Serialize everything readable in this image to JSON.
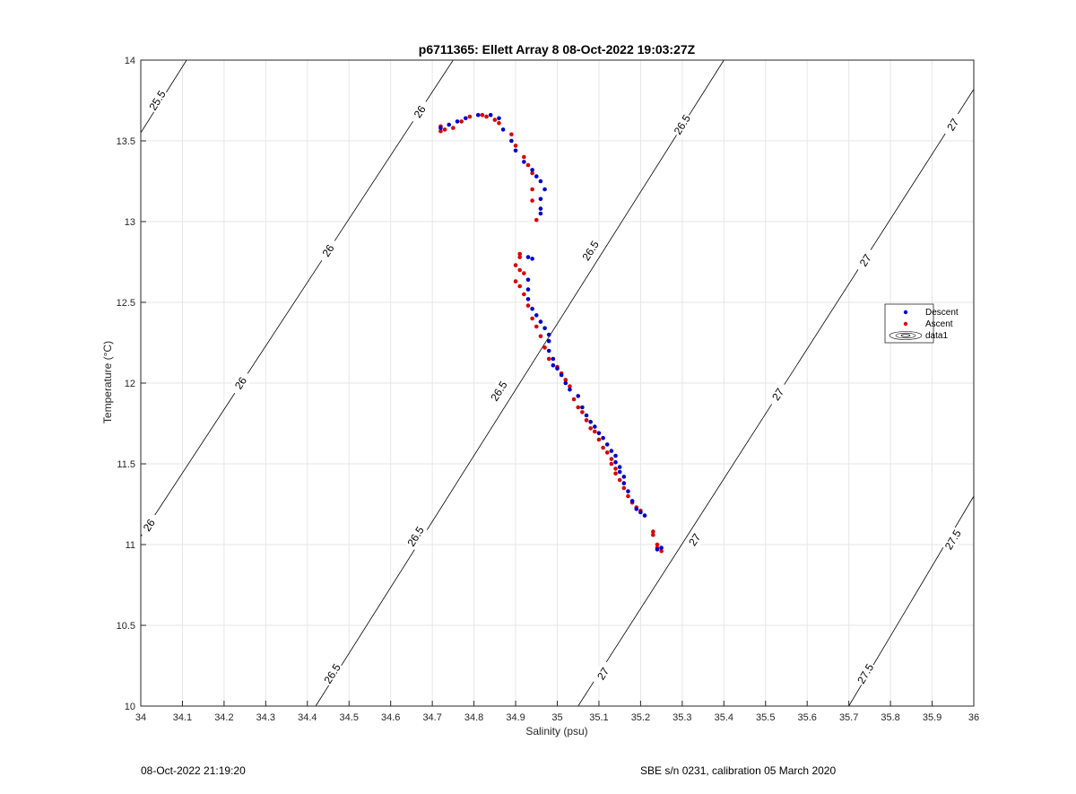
{
  "chart_data": {
    "type": "scatter",
    "title": "p6711365: Ellett Array 8 08-Oct-2022 19:03:27Z",
    "xlabel": "Salinity (psu)",
    "ylabel": "Temperature (°C)",
    "xlim": [
      34,
      36
    ],
    "ylim": [
      10,
      14
    ],
    "x_ticks": [
      "34",
      "34.1",
      "34.2",
      "34.3",
      "34.4",
      "34.5",
      "34.6",
      "34.7",
      "34.8",
      "34.9",
      "35",
      "35.1",
      "35.2",
      "35.3",
      "35.4",
      "35.5",
      "35.6",
      "35.7",
      "35.8",
      "35.9",
      "36"
    ],
    "y_ticks": [
      "10",
      "10.5",
      "11",
      "11.5",
      "12",
      "12.5",
      "13",
      "13.5",
      "14"
    ],
    "grid": true,
    "legend": {
      "placement": "right",
      "entries": [
        "Descent",
        "Ascent",
        "data1"
      ]
    },
    "colors": {
      "descent": "#0000cc",
      "ascent": "#dd0000",
      "contour": "#000000",
      "grid": "#e6e6e6"
    },
    "contours": [
      {
        "level": "25.5",
        "p1": [
          34.0,
          13.55
        ],
        "p2": [
          34.11,
          14.0
        ],
        "labels": [
          [
            34.04,
            13.75
          ]
        ]
      },
      {
        "level": "26",
        "p1": [
          34.0,
          11.05
        ],
        "p2": [
          34.75,
          14.0
        ],
        "labels": [
          [
            34.02,
            11.12
          ],
          [
            34.24,
            12.0
          ],
          [
            34.45,
            12.82
          ],
          [
            34.67,
            13.68
          ]
        ]
      },
      {
        "level": "26.5",
        "p1": [
          34.42,
          10.0
        ],
        "p2": [
          35.4,
          14.0
        ],
        "labels": [
          [
            34.46,
            10.2
          ],
          [
            34.66,
            11.05
          ],
          [
            34.86,
            11.95
          ],
          [
            35.08,
            12.82
          ],
          [
            35.3,
            13.6
          ]
        ]
      },
      {
        "level": "27",
        "p1": [
          35.05,
          10.0
        ],
        "p2": [
          36.0,
          13.82
        ],
        "labels": [
          [
            35.11,
            10.2
          ],
          [
            35.33,
            11.03
          ],
          [
            35.53,
            11.93
          ],
          [
            35.74,
            12.76
          ],
          [
            35.95,
            13.6
          ]
        ]
      },
      {
        "level": "27.5",
        "p1": [
          35.7,
          10.0
        ],
        "p2": [
          36.0,
          11.3
        ],
        "labels": [
          [
            35.74,
            10.2
          ],
          [
            35.95,
            11.03
          ]
        ]
      }
    ],
    "series": [
      {
        "name": "Descent",
        "points": [
          [
            34.72,
            13.58
          ],
          [
            34.74,
            13.6
          ],
          [
            34.76,
            13.62
          ],
          [
            34.78,
            13.64
          ],
          [
            34.81,
            13.66
          ],
          [
            34.84,
            13.66
          ],
          [
            34.86,
            13.64
          ],
          [
            34.87,
            13.57
          ],
          [
            34.89,
            13.5
          ],
          [
            34.9,
            13.44
          ],
          [
            34.92,
            13.37
          ],
          [
            34.94,
            13.32
          ],
          [
            34.95,
            13.28
          ],
          [
            34.96,
            13.25
          ],
          [
            34.97,
            13.2
          ],
          [
            34.96,
            13.14
          ],
          [
            34.96,
            13.08
          ],
          [
            34.96,
            13.05
          ],
          [
            34.93,
            12.78
          ],
          [
            34.94,
            12.77
          ],
          [
            34.93,
            12.64
          ],
          [
            34.93,
            12.58
          ],
          [
            34.93,
            12.52
          ],
          [
            34.94,
            12.46
          ],
          [
            34.95,
            12.42
          ],
          [
            34.96,
            12.38
          ],
          [
            34.97,
            12.34
          ],
          [
            34.98,
            12.3
          ],
          [
            34.98,
            12.26
          ],
          [
            34.98,
            12.2
          ],
          [
            34.99,
            12.15
          ],
          [
            34.99,
            12.11
          ],
          [
            35.0,
            12.09
          ],
          [
            35.01,
            12.05
          ],
          [
            35.02,
            12.0
          ],
          [
            35.03,
            11.96
          ],
          [
            35.05,
            11.92
          ],
          [
            35.06,
            11.85
          ],
          [
            35.07,
            11.8
          ],
          [
            35.08,
            11.76
          ],
          [
            35.09,
            11.73
          ],
          [
            35.1,
            11.69
          ],
          [
            35.11,
            11.66
          ],
          [
            35.12,
            11.62
          ],
          [
            35.13,
            11.58
          ],
          [
            35.14,
            11.55
          ],
          [
            35.14,
            11.51
          ],
          [
            35.15,
            11.48
          ],
          [
            35.15,
            11.45
          ],
          [
            35.16,
            11.42
          ],
          [
            35.16,
            11.38
          ],
          [
            35.17,
            11.33
          ],
          [
            35.18,
            11.27
          ],
          [
            35.19,
            11.22
          ],
          [
            35.2,
            11.2
          ],
          [
            35.21,
            11.18
          ],
          [
            35.25,
            10.98
          ],
          [
            35.24,
            10.97
          ]
        ]
      },
      {
        "name": "Ascent",
        "points": [
          [
            34.72,
            13.59
          ],
          [
            34.72,
            13.56
          ],
          [
            34.73,
            13.57
          ],
          [
            34.75,
            13.58
          ],
          [
            34.77,
            13.62
          ],
          [
            34.79,
            13.65
          ],
          [
            34.82,
            13.66
          ],
          [
            34.83,
            13.65
          ],
          [
            34.85,
            13.63
          ],
          [
            34.86,
            13.61
          ],
          [
            34.89,
            13.54
          ],
          [
            34.9,
            13.47
          ],
          [
            34.92,
            13.4
          ],
          [
            34.93,
            13.35
          ],
          [
            34.94,
            13.3
          ],
          [
            34.94,
            13.2
          ],
          [
            34.94,
            13.13
          ],
          [
            34.95,
            13.01
          ],
          [
            34.91,
            12.8
          ],
          [
            34.91,
            12.78
          ],
          [
            34.9,
            12.73
          ],
          [
            34.91,
            12.7
          ],
          [
            34.92,
            12.68
          ],
          [
            34.9,
            12.63
          ],
          [
            34.91,
            12.6
          ],
          [
            34.92,
            12.55
          ],
          [
            34.93,
            12.48
          ],
          [
            34.94,
            12.4
          ],
          [
            34.95,
            12.35
          ],
          [
            34.96,
            12.29
          ],
          [
            34.97,
            12.22
          ],
          [
            34.98,
            12.15
          ],
          [
            35.0,
            12.1
          ],
          [
            35.01,
            12.06
          ],
          [
            35.02,
            12.02
          ],
          [
            35.03,
            11.98
          ],
          [
            35.04,
            11.9
          ],
          [
            35.05,
            11.85
          ],
          [
            35.06,
            11.82
          ],
          [
            35.07,
            11.77
          ],
          [
            35.08,
            11.72
          ],
          [
            35.09,
            11.7
          ],
          [
            35.1,
            11.65
          ],
          [
            35.11,
            11.6
          ],
          [
            35.12,
            11.57
          ],
          [
            35.13,
            11.53
          ],
          [
            35.13,
            11.5
          ],
          [
            35.14,
            11.47
          ],
          [
            35.14,
            11.44
          ],
          [
            35.15,
            11.4
          ],
          [
            35.16,
            11.35
          ],
          [
            35.17,
            11.3
          ],
          [
            35.18,
            11.26
          ],
          [
            35.19,
            11.23
          ],
          [
            35.2,
            11.21
          ],
          [
            35.23,
            11.08
          ],
          [
            35.23,
            11.06
          ],
          [
            35.24,
            11.0
          ],
          [
            35.24,
            10.98
          ],
          [
            35.25,
            10.96
          ]
        ]
      }
    ]
  },
  "footer": {
    "left": "08-Oct-2022 21:19:20",
    "right": "SBE s/n 0231, calibration 05 March 2020"
  }
}
